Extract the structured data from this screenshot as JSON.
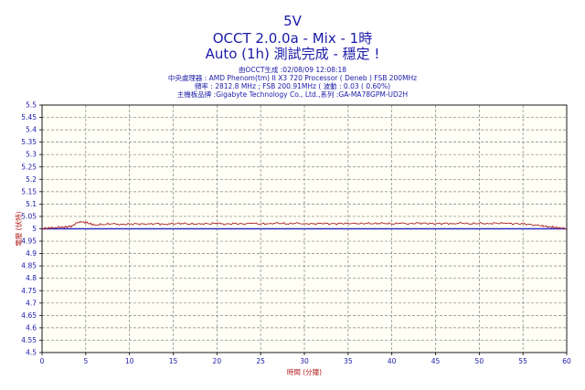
{
  "header": {
    "line1": "5V",
    "line2": "OCCT 2.0.0a - Mix - 1時",
    "line3": "Auto (1h) 測試完成 - 穩定 !",
    "info": [
      "由OCCT生成 :02/08/09 12:08:18",
      "中央處理器 : AMD Phenom(tm) II X3 720 Processor ( Deneb ) FSB 200MHz",
      "頻率 : 2812.8 MHz ; FSB 200.91MHz ( 波動 : 0.03 ( 0.60%)",
      "主機板品牌 :Gigabyte Technology Co., Ltd.,系列 :GA-MA78GPM-UD2H"
    ]
  },
  "colors": {
    "text": "#1a1aa8",
    "series_voltage": "#a8242a",
    "reference_line": "#2e2ec8",
    "grid": "#808080",
    "plot_background": "#fffff5"
  },
  "chart_data": {
    "type": "line",
    "xlabel": "時間 (分鐘)",
    "ylabel": "電壓 (伏特)",
    "xlim": [
      0,
      60
    ],
    "ylim": [
      4.5,
      5.5
    ],
    "x_ticks": [
      "0",
      "5",
      "10",
      "15",
      "20",
      "25",
      "30",
      "35",
      "40",
      "45",
      "50",
      "55",
      "60"
    ],
    "y_ticks": [
      "5.5",
      "5.45",
      "5.4",
      "5.35",
      "5.3",
      "5.25",
      "5.2",
      "5.15",
      "5.1",
      "5.05",
      "5",
      "4.95",
      "4.9",
      "4.85",
      "4.8",
      "4.75",
      "4.7",
      "4.65",
      "4.6",
      "4.55",
      "4.5"
    ],
    "grid": true,
    "reference_value": 5.0,
    "series": [
      {
        "x": [
          0,
          0.5,
          1,
          1.5,
          2,
          2.5,
          3,
          3.5,
          4,
          4.5,
          5,
          5.5,
          6,
          7,
          8,
          9,
          10,
          11,
          12,
          13,
          14,
          15,
          16,
          17,
          18,
          19,
          20,
          21,
          22,
          23,
          24,
          25,
          26,
          27,
          28,
          29,
          30,
          31,
          32,
          33,
          34,
          35,
          36,
          37,
          38,
          39,
          40,
          41,
          42,
          43,
          44,
          45,
          46,
          47,
          48,
          49,
          50,
          51,
          52,
          53,
          54,
          55,
          56,
          57,
          57.5,
          58,
          58.5,
          59,
          59.5,
          60
        ],
        "values": [
          5.0,
          5.002,
          5.004,
          5.005,
          5.006,
          5.006,
          5.008,
          5.012,
          5.026,
          5.027,
          5.026,
          5.02,
          5.016,
          5.017,
          5.02,
          5.018,
          5.019,
          5.02,
          5.018,
          5.021,
          5.019,
          5.02,
          5.022,
          5.019,
          5.021,
          5.02,
          5.022,
          5.019,
          5.021,
          5.02,
          5.022,
          5.02,
          5.021,
          5.023,
          5.02,
          5.022,
          5.021,
          5.02,
          5.022,
          5.02,
          5.021,
          5.023,
          5.02,
          5.022,
          5.021,
          5.023,
          5.02,
          5.022,
          5.021,
          5.023,
          5.022,
          5.02,
          5.022,
          5.021,
          5.023,
          5.02,
          5.022,
          5.021,
          5.023,
          5.022,
          5.021,
          5.02,
          5.017,
          5.012,
          5.01,
          5.008,
          5.006,
          5.004,
          5.002,
          5.001
        ]
      }
    ]
  }
}
